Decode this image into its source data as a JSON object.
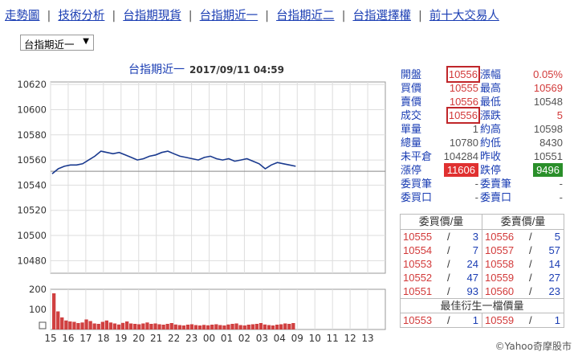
{
  "nav": [
    "走勢圖",
    "技術分析",
    "台指期現貨",
    "台指期近一",
    "台指期近二",
    "台指選擇權",
    "前十大交易人"
  ],
  "select": {
    "value": "台指期近一",
    "arrow": "▼"
  },
  "title": {
    "name": "台指期近一",
    "timestamp": "2017/09/11 04:59"
  },
  "quote": [
    {
      "l1": "開盤",
      "v1": "10556",
      "l2": "漲幅",
      "v2": "0.05%",
      "c1": "red",
      "c2": "red",
      "box1": true
    },
    {
      "l1": "買價",
      "v1": "10555",
      "l2": "最高",
      "v2": "10569",
      "c1": "red",
      "c2": "red"
    },
    {
      "l1": "賣價",
      "v1": "10556",
      "l2": "最低",
      "v2": "10548",
      "c1": "red",
      "c2": "dark"
    },
    {
      "l1": "成交",
      "v1": "10556",
      "l2": "漲跌",
      "v2": "5",
      "c1": "red",
      "c2": "red",
      "box1": true
    },
    {
      "l1": "單量",
      "v1": "1",
      "l2": "約高",
      "v2": "10598",
      "c1": "dark",
      "c2": "dark"
    },
    {
      "l1": "總量",
      "v1": "10780",
      "l2": "約低",
      "v2": "8430",
      "c1": "dark",
      "c2": "dark"
    },
    {
      "l1": "未平倉",
      "v1": "104284",
      "l2": "昨收",
      "v2": "10551",
      "c1": "dark",
      "c2": "dark"
    },
    {
      "l1": "漲停",
      "v1": "11606",
      "l2": "跌停",
      "v2": "9496",
      "c1": "badge-red",
      "c2": "badge-green"
    },
    {
      "l1": "委買筆",
      "v1": "-",
      "l2": "委賣筆",
      "v2": "-",
      "c1": "dark",
      "c2": "dark"
    },
    {
      "l1": "委買口",
      "v1": "-",
      "l2": "委賣口",
      "v2": "-",
      "c1": "dark",
      "c2": "dark"
    }
  ],
  "orderbook": {
    "bid_header": "委買價/量",
    "ask_header": "委賣價/量",
    "separator": "/",
    "rows": [
      {
        "bp": "10555",
        "bq": "3",
        "ap": "10556",
        "aq": "5"
      },
      {
        "bp": "10554",
        "bq": "7",
        "ap": "10557",
        "aq": "57"
      },
      {
        "bp": "10553",
        "bq": "24",
        "ap": "10558",
        "aq": "14"
      },
      {
        "bp": "10552",
        "bq": "47",
        "ap": "10559",
        "aq": "27"
      },
      {
        "bp": "10551",
        "bq": "93",
        "ap": "10560",
        "aq": "23"
      }
    ],
    "best_label": "最佳衍生一檔價量",
    "best": {
      "bp": "10553",
      "bq": "1",
      "ap": "10559",
      "aq": "1"
    }
  },
  "copyright": "©Yahoo奇摩股市",
  "colors": {
    "link": "#1a3db3",
    "line": "#1a3a8f",
    "volume": "#d04040",
    "up": "#d23a3a",
    "down": "#2a8f2a"
  },
  "chart_data": {
    "type": "line",
    "title": "台指期近一 2017/09/11 04:59",
    "xlabel": "",
    "ylabel": "",
    "x_ticks": [
      "15",
      "16",
      "17",
      "18",
      "19",
      "20",
      "21",
      "22",
      "23",
      "00",
      "01",
      "02",
      "03",
      "04",
      "09",
      "10",
      "11",
      "12",
      "13"
    ],
    "y_ticks": [
      10480,
      10500,
      10520,
      10540,
      10560,
      10580,
      10600,
      10620
    ],
    "ylim": [
      10470,
      10622
    ],
    "reference": 10551,
    "grid": true,
    "series": [
      {
        "values": [
          10549,
          10553,
          10555,
          10556,
          10556,
          10557,
          10560,
          10563,
          10567,
          10566,
          10565,
          10566,
          10564,
          10562,
          10560,
          10561,
          10563,
          10564,
          10566,
          10567,
          10565,
          10563,
          10562,
          10561,
          10560,
          10562,
          10563,
          10561,
          10560,
          10561,
          10559,
          10560,
          10561,
          10559,
          10557,
          10553,
          10556,
          10558,
          10557,
          10556,
          10555
        ]
      }
    ],
    "volume": {
      "y_ticks": [
        200,
        100
      ],
      "ylim": [
        0,
        200
      ],
      "values": [
        180,
        90,
        60,
        45,
        40,
        38,
        32,
        35,
        50,
        42,
        30,
        28,
        38,
        45,
        35,
        30,
        25,
        33,
        40,
        30,
        28,
        26,
        30,
        35,
        28,
        30,
        26,
        24,
        28,
        32,
        25,
        22,
        20,
        24,
        26,
        22,
        20,
        23,
        21,
        24,
        26,
        22,
        20,
        25,
        28,
        30,
        22,
        20,
        24,
        26,
        28,
        32,
        25,
        22,
        20,
        24,
        26,
        30,
        28,
        32
      ]
    }
  }
}
